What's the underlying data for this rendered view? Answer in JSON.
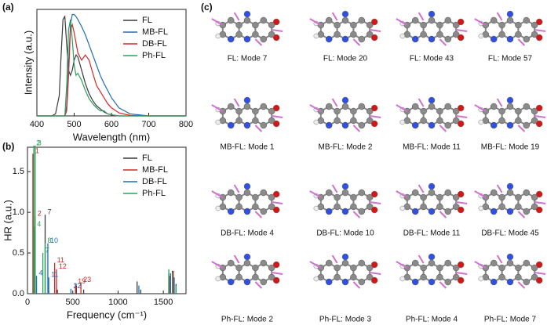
{
  "chart_data": [
    {
      "type": "line",
      "label": "(a)",
      "xlabel": "Wavelength (nm)",
      "ylabel": "Intensity (a.u.)",
      "x": [
        400,
        440,
        450,
        460,
        465,
        470,
        475,
        480,
        485,
        490,
        495,
        500,
        505,
        510,
        520,
        530,
        540,
        550,
        560,
        570,
        580,
        590,
        600,
        620,
        650,
        700,
        750,
        800
      ],
      "xlim": [
        400,
        800
      ],
      "xticks": [
        400,
        500,
        600,
        700,
        800
      ],
      "ylim": [
        0,
        1.05
      ],
      "legend": "upper right",
      "series": [
        {
          "name": "FL",
          "color": "#3a3a3a",
          "values": [
            0,
            0,
            0.02,
            0.2,
            0.6,
            0.95,
            0.98,
            0.7,
            0.45,
            0.4,
            0.45,
            0.55,
            0.6,
            0.58,
            0.45,
            0.32,
            0.22,
            0.15,
            0.1,
            0.07,
            0.04,
            0.02,
            0.01,
            0,
            0,
            0,
            0,
            0
          ]
        },
        {
          "name": "MB-FL",
          "color": "#1f6fb5",
          "values": [
            0,
            0,
            0,
            0,
            0,
            0,
            0,
            0.1,
            0.5,
            0.9,
            1.0,
            1.0,
            0.98,
            0.95,
            0.88,
            0.8,
            0.7,
            0.6,
            0.5,
            0.4,
            0.32,
            0.25,
            0.18,
            0.08,
            0.02,
            0,
            0,
            0
          ]
        },
        {
          "name": "DB-FL",
          "color": "#d62728",
          "values": [
            0,
            0,
            0,
            0,
            0,
            0,
            0,
            0.05,
            0.4,
            0.85,
            0.9,
            0.82,
            0.72,
            0.62,
            0.55,
            0.6,
            0.55,
            0.42,
            0.3,
            0.24,
            0.18,
            0.12,
            0.08,
            0.03,
            0.005,
            0,
            0,
            0
          ]
        },
        {
          "name": "Ph-FL",
          "color": "#2ca05a",
          "values": [
            0,
            0,
            0,
            0,
            0,
            0,
            0,
            0.3,
            0.85,
            0.95,
            0.75,
            0.5,
            0.4,
            0.42,
            0.35,
            0.25,
            0.17,
            0.12,
            0.08,
            0.05,
            0.05,
            0.02,
            0.01,
            0,
            0,
            0,
            0,
            0
          ]
        }
      ]
    },
    {
      "type": "stem",
      "label": "(b)",
      "xlabel": "Frequency (cm⁻¹)",
      "ylabel": "HR (a.u.)",
      "xlim": [
        0,
        1750
      ],
      "xticks": [
        0,
        500,
        1000,
        1500
      ],
      "ylim": [
        0,
        1.8
      ],
      "yticks": [
        {
          "value": 0,
          "label": "0.0"
        },
        {
          "value": 0.5,
          "label": "0.5"
        },
        {
          "value": 1,
          "label": "1.0"
        },
        {
          "value": 1.5,
          "label": "1.5"
        }
      ],
      "legend": "upper right",
      "series": [
        {
          "name": "FL",
          "color": "#3a3a3a",
          "x": [
            195,
            330,
            540,
            620,
            1210,
            1250,
            1560,
            1600,
            1640
          ],
          "values": [
            0.97,
            0.05,
            0.1,
            0.05,
            0.15,
            0.05,
            0.25,
            0.28,
            0.12
          ],
          "point_labels": [
            "7",
            null,
            null,
            null,
            null,
            null,
            null,
            null,
            null
          ]
        },
        {
          "name": "MB-FL",
          "color": "#d62728",
          "x": [
            60,
            85,
            300,
            320,
            530,
            590,
            1570,
            1610
          ],
          "values": [
            1.72,
            0.95,
            0.38,
            0.3,
            0.12,
            0.14,
            0.22,
            0.28
          ],
          "point_labels": [
            "1",
            "2",
            "11",
            "12",
            "19",
            "23",
            null,
            null
          ]
        },
        {
          "name": "DB-FL",
          "color": "#1f6fb5",
          "x": [
            100,
            225,
            235,
            480,
            1230,
            1580,
            1620
          ],
          "values": [
            0.22,
            0.62,
            0.2,
            0.06,
            0.1,
            0.25,
            0.2
          ],
          "point_labels": [
            "4",
            "10",
            "11",
            "22",
            null,
            null,
            null
          ]
        },
        {
          "name": "Ph-FL",
          "color": "#2ca05a",
          "x": [
            70,
            85,
            80,
            170,
            195,
            1560,
            1600,
            1640
          ],
          "values": [
            1.82,
            1.82,
            0.82,
            0.5,
            0.62,
            0.3,
            0.26,
            0.1
          ],
          "point_labels": [
            "2",
            "3",
            "4",
            "7",
            "8",
            null,
            null,
            null
          ]
        }
      ]
    }
  ],
  "molecules": {
    "label": "(c)",
    "captions": [
      "FL: Mode 7",
      "FL: Mode 20",
      "FL: Mode 43",
      "FL: Mode 57",
      "MB-FL: Mode 1",
      "MB-FL: Mode 2",
      "MB-FL: Mode 11",
      "MB-FL: Mode 19",
      "DB-FL: Mode 4",
      "DB-FL: Mode 10",
      "DB-FL: Mode 11",
      "DB-FL: Mode 45",
      "Ph-FL: Mode 2",
      "Ph-FL: Mode 3",
      "Ph-FL: Mode 4",
      "Ph-FL: Mode 7"
    ]
  }
}
